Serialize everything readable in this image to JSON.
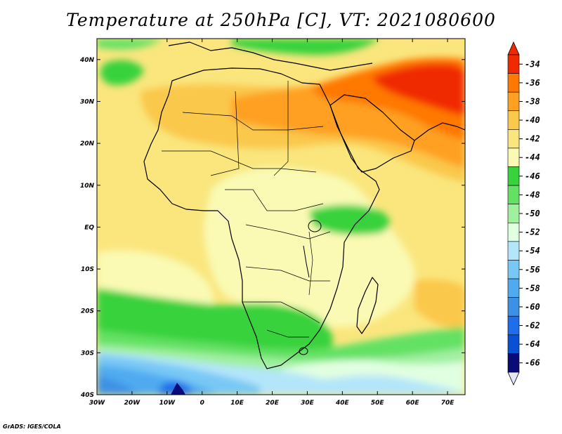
{
  "title": "Temperature at 250hPa [C], VT: 2021080600",
  "credit": "GrADS: IGES/COLA",
  "map": {
    "lat_range": [
      -40,
      45
    ],
    "lon_range": [
      -30,
      75
    ],
    "lat_ticks": [
      {
        "value": 40,
        "label": "40N"
      },
      {
        "value": 30,
        "label": "30N"
      },
      {
        "value": 20,
        "label": "20N"
      },
      {
        "value": 10,
        "label": "10N"
      },
      {
        "value": 0,
        "label": "EQ"
      },
      {
        "value": -10,
        "label": "10S"
      },
      {
        "value": -20,
        "label": "20S"
      },
      {
        "value": -30,
        "label": "30S"
      },
      {
        "value": -40,
        "label": "40S"
      }
    ],
    "lon_ticks": [
      {
        "value": -30,
        "label": "30W"
      },
      {
        "value": -20,
        "label": "20W"
      },
      {
        "value": -10,
        "label": "10W"
      },
      {
        "value": 0,
        "label": "0"
      },
      {
        "value": 10,
        "label": "10E"
      },
      {
        "value": 20,
        "label": "20E"
      },
      {
        "value": 30,
        "label": "30E"
      },
      {
        "value": 40,
        "label": "40E"
      },
      {
        "value": 50,
        "label": "50E"
      },
      {
        "value": 60,
        "label": "60E"
      },
      {
        "value": 70,
        "label": "70E"
      }
    ]
  },
  "colorbar": {
    "colors": [
      "#ffffff",
      "#f02a00",
      "#ff7800",
      "#ffa023",
      "#fac84b",
      "#fae67d",
      "#fafab4",
      "#37d23c",
      "#64e164",
      "#a0f0a0",
      "#e1ffe1",
      "#b4e6fa",
      "#78c8f5",
      "#50aaf0",
      "#3c91e6",
      "#1e6eeb",
      "#0a50d2",
      "#0a0a78",
      "#e6e6fa"
    ],
    "bands": [
      "#f02a00",
      "#ff7800",
      "#ffa023",
      "#fac84b",
      "#fae67d",
      "#fafab4",
      "#37d23c",
      "#64e164",
      "#a0f0a0",
      "#e1ffe1",
      "#b4e6fa",
      "#78c8f5",
      "#50aaf0",
      "#3c91e6",
      "#1e6eeb",
      "#0a50d2",
      "#0a0a78"
    ],
    "top_arrow_color": "#f02a00",
    "bottom_arrow_color": "#e6e6fa",
    "labels": [
      "-34",
      "-36",
      "-38",
      "-40",
      "-42",
      "-44",
      "-46",
      "-48",
      "-50",
      "-52",
      "-54",
      "-56",
      "-58",
      "-60",
      "-62",
      "-64",
      "-66"
    ]
  }
}
